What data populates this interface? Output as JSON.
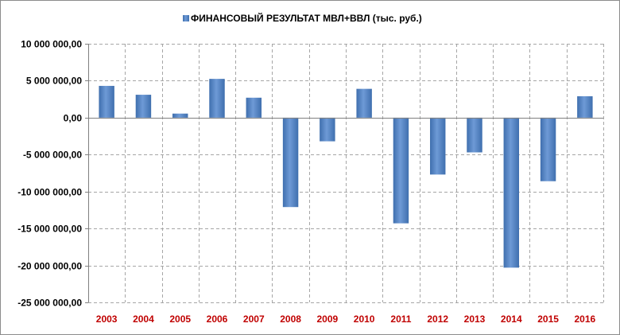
{
  "chart_data": {
    "type": "bar",
    "legend": "ФИНАНСОВЫЙ РЕЗУЛЬТАТ  МВЛ+ВВЛ (тыс. руб.)",
    "legend_position": "top",
    "grid": true,
    "categories": [
      "2003",
      "2004",
      "2005",
      "2006",
      "2007",
      "2008",
      "2009",
      "2010",
      "2011",
      "2012",
      "2013",
      "2014",
      "2015",
      "2016"
    ],
    "series": [
      {
        "name": "ФИНАНСОВЫЙ РЕЗУЛЬТАТ  МВЛ+ВВЛ (тыс. руб.)",
        "values": [
          4300000,
          3100000,
          550000,
          5250000,
          2700000,
          -12100000,
          -3200000,
          3900000,
          -14300000,
          -7700000,
          -4700000,
          -20300000,
          -8600000,
          2900000
        ]
      }
    ],
    "ylim": [
      -25000000,
      10000000
    ],
    "yticks": [
      10000000,
      5000000,
      0,
      -5000000,
      -10000000,
      -15000000,
      -20000000,
      -25000000
    ],
    "ytick_labels": [
      "10 000 000,00",
      "5 000 000,00",
      "0,00",
      "-5 000 000,00",
      "-10 000 000,00",
      "-15 000 000,00",
      "-20 000 000,00",
      "-25 000 000,00"
    ],
    "colors": {
      "bar": "#4f81bd",
      "bar_light": "#6e9ad6",
      "x_labels": "#c00000",
      "grid": "#a6a6a6"
    }
  }
}
